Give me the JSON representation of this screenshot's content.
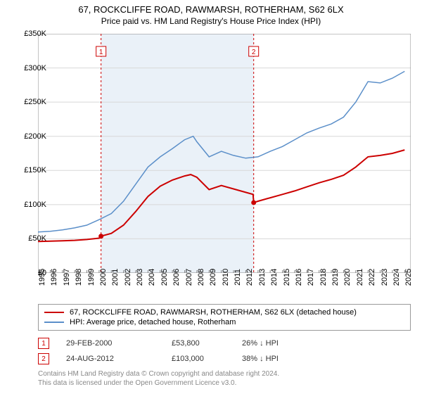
{
  "title_line1": "67, ROCKCLIFFE ROAD, RAWMARSH, ROTHERHAM, S62 6LX",
  "title_line2": "Price paid vs. HM Land Registry's House Price Index (HPI)",
  "chart": {
    "type": "line",
    "background": "#ffffff",
    "grid_color": "#d8d8d8",
    "axis_color": "#888888",
    "shade_color": "#eaf1f8",
    "shade_start_year": 2000.16,
    "shade_end_year": 2012.65,
    "x_start": 1995,
    "x_end": 2025.5,
    "x_ticks": [
      1995,
      1996,
      1997,
      1998,
      1999,
      2000,
      2001,
      2002,
      2003,
      2004,
      2005,
      2006,
      2007,
      2008,
      2009,
      2010,
      2011,
      2012,
      2013,
      2014,
      2015,
      2016,
      2017,
      2018,
      2019,
      2020,
      2021,
      2022,
      2023,
      2024,
      2025
    ],
    "y_min": 0,
    "y_max": 350000,
    "y_ticks": [
      0,
      50000,
      100000,
      150000,
      200000,
      250000,
      300000,
      350000
    ],
    "y_tick_labels": [
      "£0",
      "£50K",
      "£100K",
      "£150K",
      "£200K",
      "£250K",
      "£300K",
      "£350K"
    ],
    "series": [
      {
        "name": "property",
        "color": "#cc0000",
        "width": 2,
        "points": [
          [
            1995,
            46000
          ],
          [
            1996,
            46500
          ],
          [
            1997,
            47000
          ],
          [
            1998,
            47800
          ],
          [
            1999,
            49000
          ],
          [
            2000,
            51000
          ],
          [
            2000.16,
            53800
          ],
          [
            2001,
            58000
          ],
          [
            2002,
            70000
          ],
          [
            2003,
            90000
          ],
          [
            2004,
            112000
          ],
          [
            2005,
            127000
          ],
          [
            2006,
            136000
          ],
          [
            2007,
            142000
          ],
          [
            2007.5,
            144000
          ],
          [
            2008,
            140000
          ],
          [
            2009,
            122000
          ],
          [
            2010,
            128000
          ],
          [
            2011,
            123000
          ],
          [
            2012,
            118000
          ],
          [
            2012.6,
            115000
          ],
          [
            2012.65,
            103000
          ],
          [
            2013,
            105000
          ],
          [
            2014,
            110000
          ],
          [
            2015,
            115000
          ],
          [
            2016,
            120000
          ],
          [
            2017,
            126000
          ],
          [
            2018,
            132000
          ],
          [
            2019,
            137000
          ],
          [
            2020,
            143000
          ],
          [
            2021,
            155000
          ],
          [
            2022,
            170000
          ],
          [
            2023,
            172000
          ],
          [
            2024,
            175000
          ],
          [
            2025,
            180000
          ]
        ]
      },
      {
        "name": "hpi",
        "color": "#5b8fc9",
        "width": 1.5,
        "points": [
          [
            1995,
            60000
          ],
          [
            1996,
            61000
          ],
          [
            1997,
            63000
          ],
          [
            1998,
            66000
          ],
          [
            1999,
            70000
          ],
          [
            2000,
            78000
          ],
          [
            2001,
            87000
          ],
          [
            2002,
            105000
          ],
          [
            2003,
            130000
          ],
          [
            2004,
            155000
          ],
          [
            2005,
            170000
          ],
          [
            2006,
            182000
          ],
          [
            2007,
            195000
          ],
          [
            2007.7,
            200000
          ],
          [
            2008,
            192000
          ],
          [
            2009,
            170000
          ],
          [
            2010,
            178000
          ],
          [
            2011,
            172000
          ],
          [
            2012,
            168000
          ],
          [
            2013,
            170000
          ],
          [
            2014,
            178000
          ],
          [
            2015,
            185000
          ],
          [
            2016,
            195000
          ],
          [
            2017,
            205000
          ],
          [
            2018,
            212000
          ],
          [
            2019,
            218000
          ],
          [
            2020,
            228000
          ],
          [
            2021,
            250000
          ],
          [
            2022,
            280000
          ],
          [
            2023,
            278000
          ],
          [
            2024,
            285000
          ],
          [
            2025,
            295000
          ]
        ]
      }
    ],
    "markers": [
      {
        "num": "1",
        "year": 2000.16,
        "y": 53800,
        "color": "#cc0000"
      },
      {
        "num": "2",
        "year": 2012.65,
        "y": 103000,
        "color": "#cc0000"
      }
    ]
  },
  "legend": {
    "items": [
      {
        "color": "#cc0000",
        "label": "67, ROCKCLIFFE ROAD, RAWMARSH, ROTHERHAM, S62 6LX (detached house)"
      },
      {
        "color": "#5b8fc9",
        "label": "HPI: Average price, detached house, Rotherham"
      }
    ]
  },
  "sales": [
    {
      "num": "1",
      "color": "#cc0000",
      "date": "29-FEB-2000",
      "price": "£53,800",
      "delta": "26% ↓ HPI"
    },
    {
      "num": "2",
      "color": "#cc0000",
      "date": "24-AUG-2012",
      "price": "£103,000",
      "delta": "38% ↓ HPI"
    }
  ],
  "footer_line1": "Contains HM Land Registry data © Crown copyright and database right 2024.",
  "footer_line2": "This data is licensed under the Open Government Licence v3.0."
}
